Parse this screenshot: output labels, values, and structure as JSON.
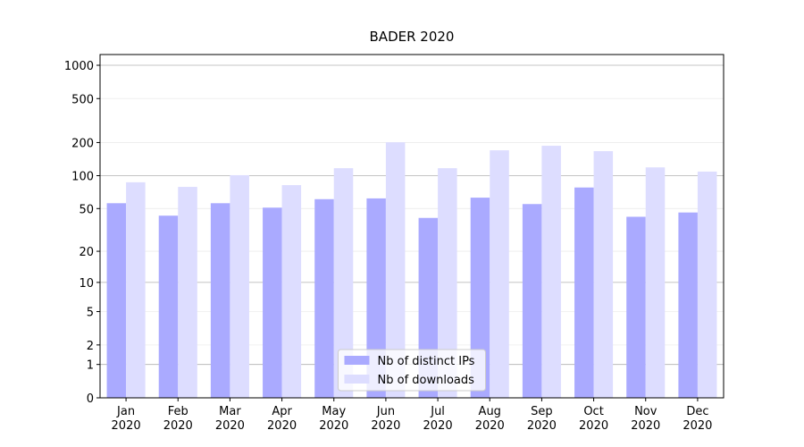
{
  "chart_data": {
    "type": "bar",
    "title": "BADER 2020",
    "categories": [
      "Jan\n2020",
      "Feb\n2020",
      "Mar\n2020",
      "Apr\n2020",
      "May\n2020",
      "Jun\n2020",
      "Jul\n2020",
      "Aug\n2020",
      "Sep\n2020",
      "Oct\n2020",
      "Nov\n2020",
      "Dec\n2020"
    ],
    "series": [
      {
        "name": "Nb of distinct IPs",
        "color": "#aaaaff",
        "values": [
          56,
          43,
          56,
          51,
          61,
          62,
          41,
          63,
          55,
          78,
          42,
          46
        ]
      },
      {
        "name": "Nb of downloads",
        "color": "#ddddff",
        "values": [
          87,
          79,
          101,
          82,
          117,
          201,
          117,
          170,
          187,
          167,
          119,
          109
        ]
      }
    ],
    "yscale": "log1p",
    "ylim": [
      0,
      1250
    ],
    "yticks": [
      0,
      1,
      2,
      5,
      10,
      20,
      50,
      100,
      200,
      500,
      1000
    ],
    "grid": true,
    "legend": "lower center"
  }
}
